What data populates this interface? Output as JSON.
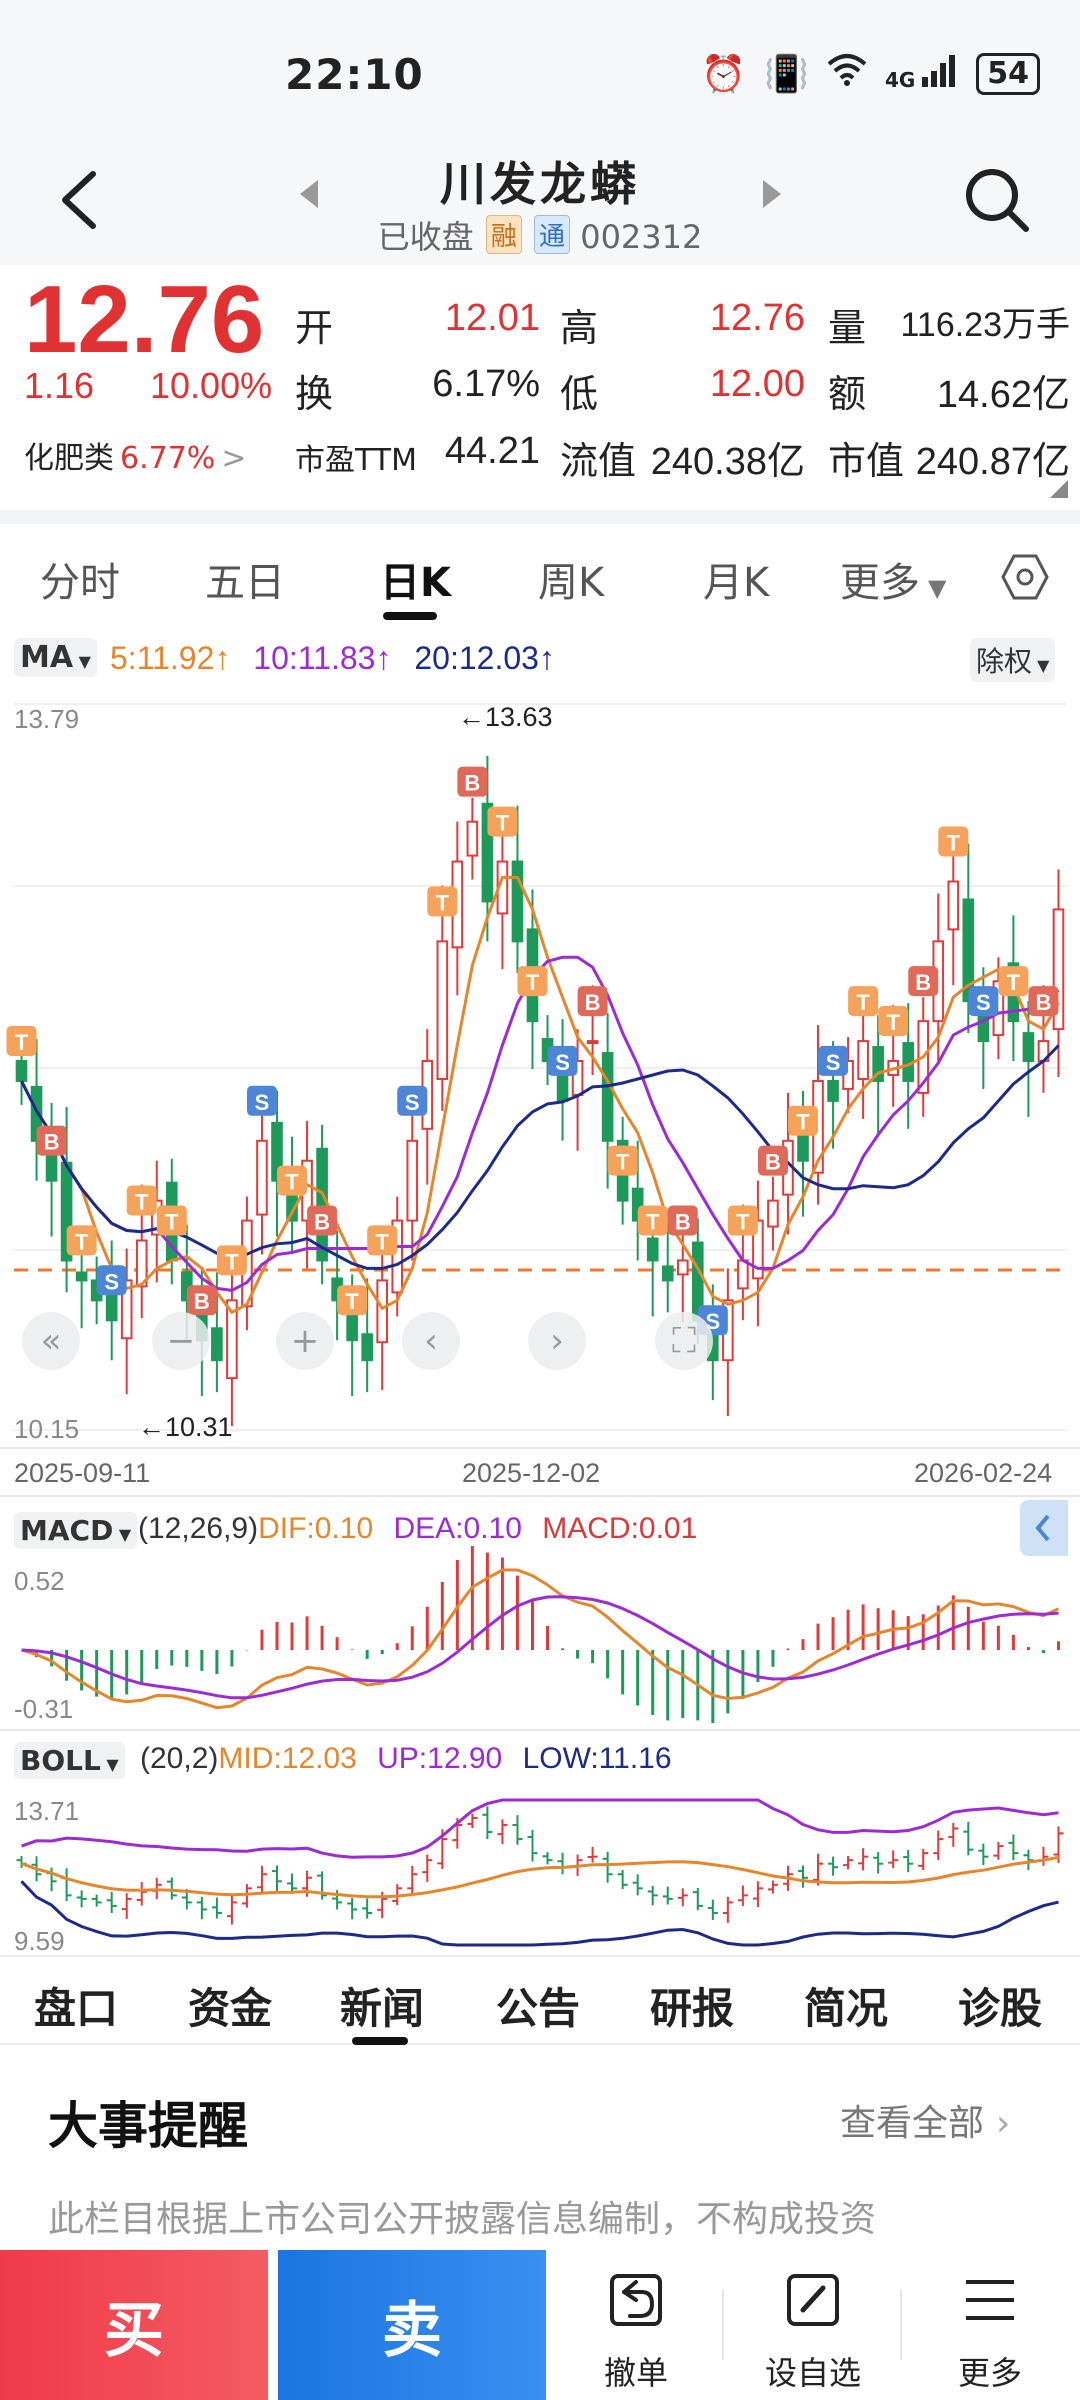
{
  "status": {
    "time": "22:10",
    "battery": "54",
    "network": "4G"
  },
  "header": {
    "title": "川发龙蟒",
    "status_text": "已收盘",
    "badge_rong": "融",
    "badge_tong": "通",
    "code": "002312"
  },
  "quote": {
    "price": "12.76",
    "change": "1.16",
    "change_pct": "10.00%",
    "sector_name": "化肥类",
    "sector_pct": "6.77%",
    "open_label": "开",
    "open": "12.01",
    "high_label": "高",
    "high": "12.76",
    "volume_label": "量",
    "volume": "116.23万手",
    "turnover_label": "换",
    "turnover": "6.17%",
    "low_label": "低",
    "low": "12.00",
    "amount_label": "额",
    "amount": "14.62亿",
    "pe_label": "市盈TTM",
    "pe": "44.21",
    "float_label": "流值",
    "float_cap": "240.38亿",
    "mcap_label": "市值",
    "mcap": "240.87亿"
  },
  "period_tabs": [
    "分时",
    "五日",
    "日K",
    "周K",
    "月K",
    "更多"
  ],
  "chart": {
    "ma_select": "MA",
    "ma5": "5:11.92↑",
    "ma10": "10:11.83↑",
    "ma20": "20:12.03↑",
    "adjust": "除权",
    "y_max": "13.79",
    "y_min": "10.15",
    "high_callout": "←13.63",
    "low_callout": "←10.31",
    "dates": [
      "2025-09-11",
      "2025-12-02",
      "2026-02-24"
    ],
    "macd_select": "MACD",
    "macd_params": "(12,26,9)",
    "macd_dif": "DIF:0.10",
    "macd_dea": "DEA:0.10",
    "macd_val": "MACD:0.01",
    "macd_max": "0.52",
    "macd_min": "-0.31",
    "boll_select": "BOLL",
    "boll_params": "(20,2)",
    "boll_mid": "MID:12.03",
    "boll_up": "UP:12.90",
    "boll_low": "LOW:11.16",
    "boll_max": "13.71",
    "boll_min": "9.59"
  },
  "chart_data": {
    "type": "candlestick",
    "series": [
      {
        "name": "MA5",
        "last": 11.92
      },
      {
        "name": "MA10",
        "last": 11.83
      },
      {
        "name": "MA20",
        "last": 12.03
      }
    ],
    "x_range": [
      "2025-09-11",
      "2026-02-24"
    ],
    "ylim": [
      10.15,
      13.79
    ],
    "period_high": 13.63,
    "period_low": 10.31,
    "last_close": 12.76,
    "closes_approx": [
      11.9,
      11.6,
      11.4,
      11.0,
      10.9,
      10.8,
      10.7,
      10.9,
      11.1,
      11.3,
      11.0,
      10.8,
      10.6,
      10.5,
      10.8,
      11.2,
      11.6,
      11.4,
      11.2,
      11.5,
      11.0,
      10.8,
      10.6,
      10.5,
      10.9,
      11.2,
      11.6,
      12.0,
      12.6,
      13.0,
      13.2,
      12.8,
      13.0,
      12.6,
      12.2,
      12.0,
      11.8,
      12.0,
      12.1,
      11.6,
      11.3,
      11.2,
      11.0,
      10.9,
      11.0,
      10.7,
      10.5,
      10.8,
      11.0,
      11.2,
      11.3,
      11.6,
      11.5,
      11.9,
      11.8,
      12.0,
      12.1,
      11.9,
      12.0,
      11.9,
      12.2,
      12.6,
      12.9,
      12.3,
      12.1,
      12.4,
      12.2,
      12.0,
      12.1,
      12.76
    ]
  },
  "indicator_tabs": [
    "盘口",
    "资金",
    "新闻",
    "公告",
    "研报",
    "简况",
    "诊股"
  ],
  "events": {
    "title": "大事提醒",
    "more": "查看全部",
    "desc": "此栏目根据上市公司公开披露信息编制，不构成投资"
  },
  "bottom": {
    "buy": "买",
    "sell": "卖",
    "cancel": "撤单",
    "watch": "设自选",
    "more": "更多"
  }
}
